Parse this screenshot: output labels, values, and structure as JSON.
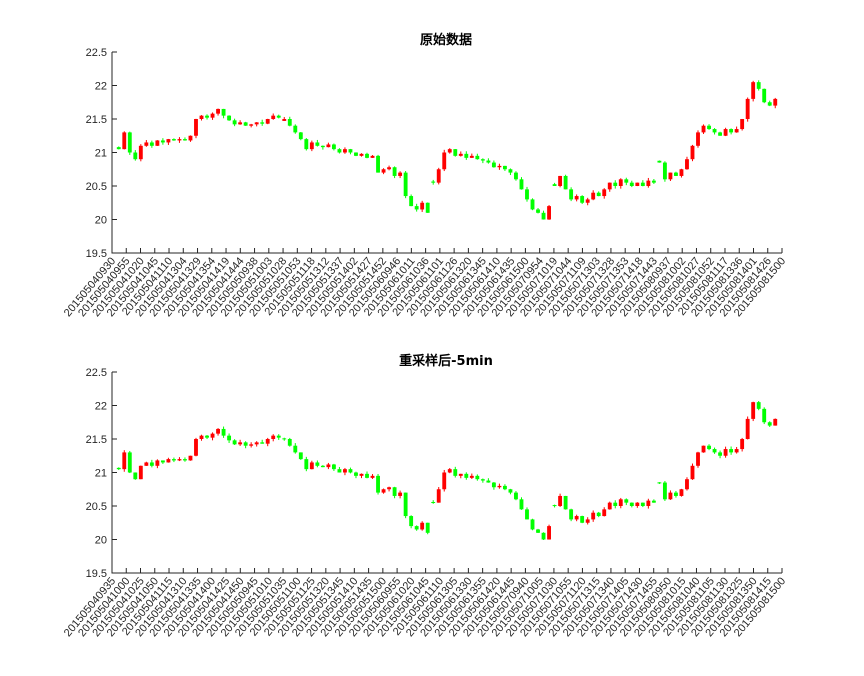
{
  "colors": {
    "up": "#ff0000",
    "down": "#00ff00",
    "axis": "#262626",
    "background": "#ffffff"
  },
  "chart_data": [
    {
      "type": "candlestick",
      "title": "原始数据",
      "xlabel": "",
      "ylabel": "",
      "ylim": [
        19.5,
        22.5
      ],
      "yticks": [
        19.5,
        20,
        20.5,
        21,
        21.5,
        22,
        22.5
      ],
      "grid": false,
      "legend": "none",
      "x_tick_labels": [
        "201505040930",
        "201505040955",
        "201505041020",
        "201505041045",
        "201505041110",
        "201505041304",
        "201505041329",
        "201505041354",
        "201505041419",
        "201505041444",
        "201505050938",
        "201505051003",
        "201505051028",
        "201505051053",
        "201505051118",
        "201505051312",
        "201505051337",
        "201505051402",
        "201505051427",
        "201505051452",
        "201505060946",
        "201505061011",
        "201505061036",
        "201505061101",
        "201505061126",
        "201505061320",
        "201505061345",
        "201505061410",
        "201505061435",
        "201505061500",
        "201505070954",
        "201505071019",
        "201505071044",
        "201505071109",
        "201505071303",
        "201505071328",
        "201505071353",
        "201505071418",
        "201505071443",
        "201505080937",
        "201505081002",
        "201505081027",
        "201505081052",
        "201505081117",
        "201505081336",
        "201505081401",
        "201505081426",
        "201505081500"
      ],
      "series": [
        {
          "segment": "2015-05-04",
          "values": [
            21.05,
            21.3,
            21.0,
            20.9,
            21.1,
            21.15,
            21.1,
            21.18,
            21.15,
            21.2,
            21.18,
            21.2,
            21.18,
            21.25,
            21.5,
            21.55,
            21.52,
            21.58,
            21.65,
            21.55,
            21.48,
            21.42,
            21.45,
            21.4,
            21.42,
            21.45,
            21.43,
            21.5,
            21.55,
            21.52
          ]
        },
        {
          "segment": "2015-05-05",
          "values": [
            21.5,
            21.4,
            21.3,
            21.2,
            21.05,
            21.15,
            21.1,
            21.08,
            21.12,
            21.05,
            21.0,
            21.05,
            21.0,
            20.95,
            20.98,
            20.92,
            20.95,
            20.7,
            20.75,
            20.78,
            20.65,
            20.7,
            20.35,
            20.2,
            20.15,
            20.25,
            20.1
          ]
        },
        {
          "segment": "2015-05-06",
          "values": [
            20.55,
            20.75,
            21.0,
            21.05,
            20.95,
            20.98,
            20.92,
            20.95,
            20.9,
            20.88,
            20.85,
            20.78,
            20.8,
            20.75,
            20.7,
            20.6,
            20.45,
            20.3,
            20.15,
            20.1,
            20.0,
            20.2
          ]
        },
        {
          "segment": "2015-05-07",
          "values": [
            20.5,
            20.65,
            20.45,
            20.3,
            20.35,
            20.25,
            20.3,
            20.4,
            20.35,
            20.45,
            20.55,
            20.5,
            20.6,
            20.55,
            20.5,
            20.55,
            20.5,
            20.58,
            20.55
          ]
        },
        {
          "segment": "2015-05-08",
          "values": [
            20.85,
            20.6,
            20.7,
            20.65,
            20.75,
            20.9,
            21.1,
            21.3,
            21.4,
            21.35,
            21.3,
            21.25,
            21.35,
            21.3,
            21.35,
            21.5,
            21.8,
            22.05,
            21.95,
            21.75,
            21.7,
            21.8
          ]
        }
      ]
    },
    {
      "type": "candlestick",
      "title": "重采样后-5min",
      "xlabel": "",
      "ylabel": "",
      "ylim": [
        19.5,
        22.5
      ],
      "yticks": [
        19.5,
        20,
        20.5,
        21,
        21.5,
        22,
        22.5
      ],
      "grid": false,
      "legend": "none",
      "x_tick_labels": [
        "201505040935",
        "201505041000",
        "201505041025",
        "201505041050",
        "201505041115",
        "201505041310",
        "201505041335",
        "201505041400",
        "201505041425",
        "201505041450",
        "201505050945",
        "201505051010",
        "201505051035",
        "201505051100",
        "201505051125",
        "201505051320",
        "201505051345",
        "201505051410",
        "201505051435",
        "201505051500",
        "201505060955",
        "201505061020",
        "201505061045",
        "201505061110",
        "201505061305",
        "201505061330",
        "201505061355",
        "201505061420",
        "201505061445",
        "201505070940",
        "201505071005",
        "201505071030",
        "201505071055",
        "201505071120",
        "201505071315",
        "201505071340",
        "201505071405",
        "201505071430",
        "201505071455",
        "201505080950",
        "201505081015",
        "201505081040",
        "201505081105",
        "201505081130",
        "201505081325",
        "201505081350",
        "201505081415",
        "201505081500"
      ],
      "series": [
        {
          "segment": "2015-05-04",
          "values": [
            21.05,
            21.3,
            21.0,
            20.9,
            21.1,
            21.15,
            21.1,
            21.18,
            21.15,
            21.2,
            21.18,
            21.2,
            21.18,
            21.25,
            21.5,
            21.55,
            21.52,
            21.58,
            21.65,
            21.55,
            21.48,
            21.42,
            21.45,
            21.4,
            21.42,
            21.45,
            21.43,
            21.5,
            21.55,
            21.52
          ]
        },
        {
          "segment": "2015-05-05",
          "values": [
            21.5,
            21.4,
            21.3,
            21.2,
            21.05,
            21.15,
            21.1,
            21.08,
            21.12,
            21.05,
            21.0,
            21.05,
            21.0,
            20.95,
            20.98,
            20.92,
            20.95,
            20.7,
            20.75,
            20.78,
            20.65,
            20.7,
            20.35,
            20.2,
            20.15,
            20.25,
            20.1
          ]
        },
        {
          "segment": "2015-05-06",
          "values": [
            20.55,
            20.75,
            21.0,
            21.05,
            20.95,
            20.98,
            20.92,
            20.95,
            20.9,
            20.88,
            20.85,
            20.78,
            20.8,
            20.75,
            20.7,
            20.6,
            20.45,
            20.3,
            20.15,
            20.1,
            20.0,
            20.2
          ]
        },
        {
          "segment": "2015-05-07",
          "values": [
            20.5,
            20.65,
            20.45,
            20.3,
            20.35,
            20.25,
            20.3,
            20.4,
            20.35,
            20.45,
            20.55,
            20.5,
            20.6,
            20.55,
            20.5,
            20.55,
            20.5,
            20.58,
            20.55
          ]
        },
        {
          "segment": "2015-05-08",
          "values": [
            20.85,
            20.6,
            20.7,
            20.65,
            20.75,
            20.9,
            21.1,
            21.3,
            21.4,
            21.35,
            21.3,
            21.25,
            21.35,
            21.3,
            21.35,
            21.5,
            21.8,
            22.05,
            21.95,
            21.75,
            21.7,
            21.8
          ]
        }
      ]
    }
  ]
}
